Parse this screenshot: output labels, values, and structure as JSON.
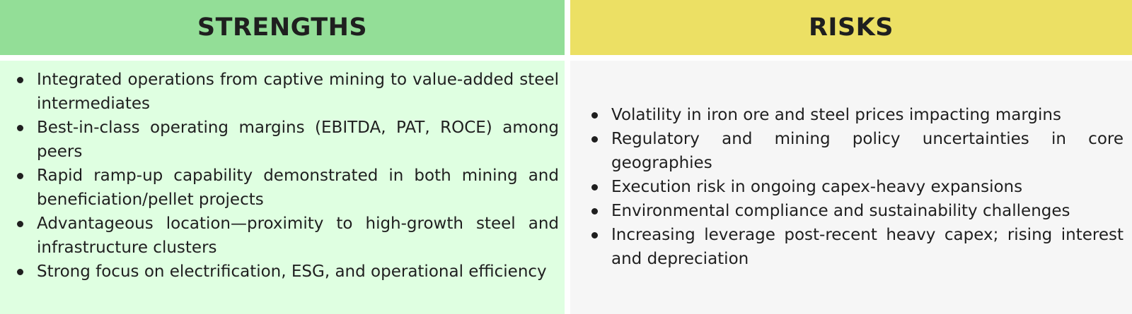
{
  "strengths": {
    "title": "STRENGTHS",
    "items": [
      "Integrated operations from captive mining to value-added steel intermediates",
      "Best-in-class operating margins (EBITDA, PAT, ROCE) among peers",
      "Rapid ramp-up capability demonstrated in both mining and beneficiation/pellet projects",
      "Advantageous location—proximity to high-growth steel and infrastructure clusters",
      "Strong focus on electrification, ESG, and operational efficiency"
    ]
  },
  "risks": {
    "title": "RISKS",
    "items": [
      "Volatility in iron ore and steel prices impacting margins",
      "Regulatory and mining policy uncertainties in core geographies",
      "Execution risk in ongoing capex-heavy expansions",
      "Environmental compliance and sustainability challenges",
      "Increasing leverage post-recent heavy capex; rising interest and depreciation"
    ]
  },
  "colors": {
    "strengths_header": "#93de97",
    "strengths_body": "#dfffe1",
    "risks_header": "#ece064",
    "risks_body": "#f6f6f6",
    "text": "#1f1f1f"
  }
}
